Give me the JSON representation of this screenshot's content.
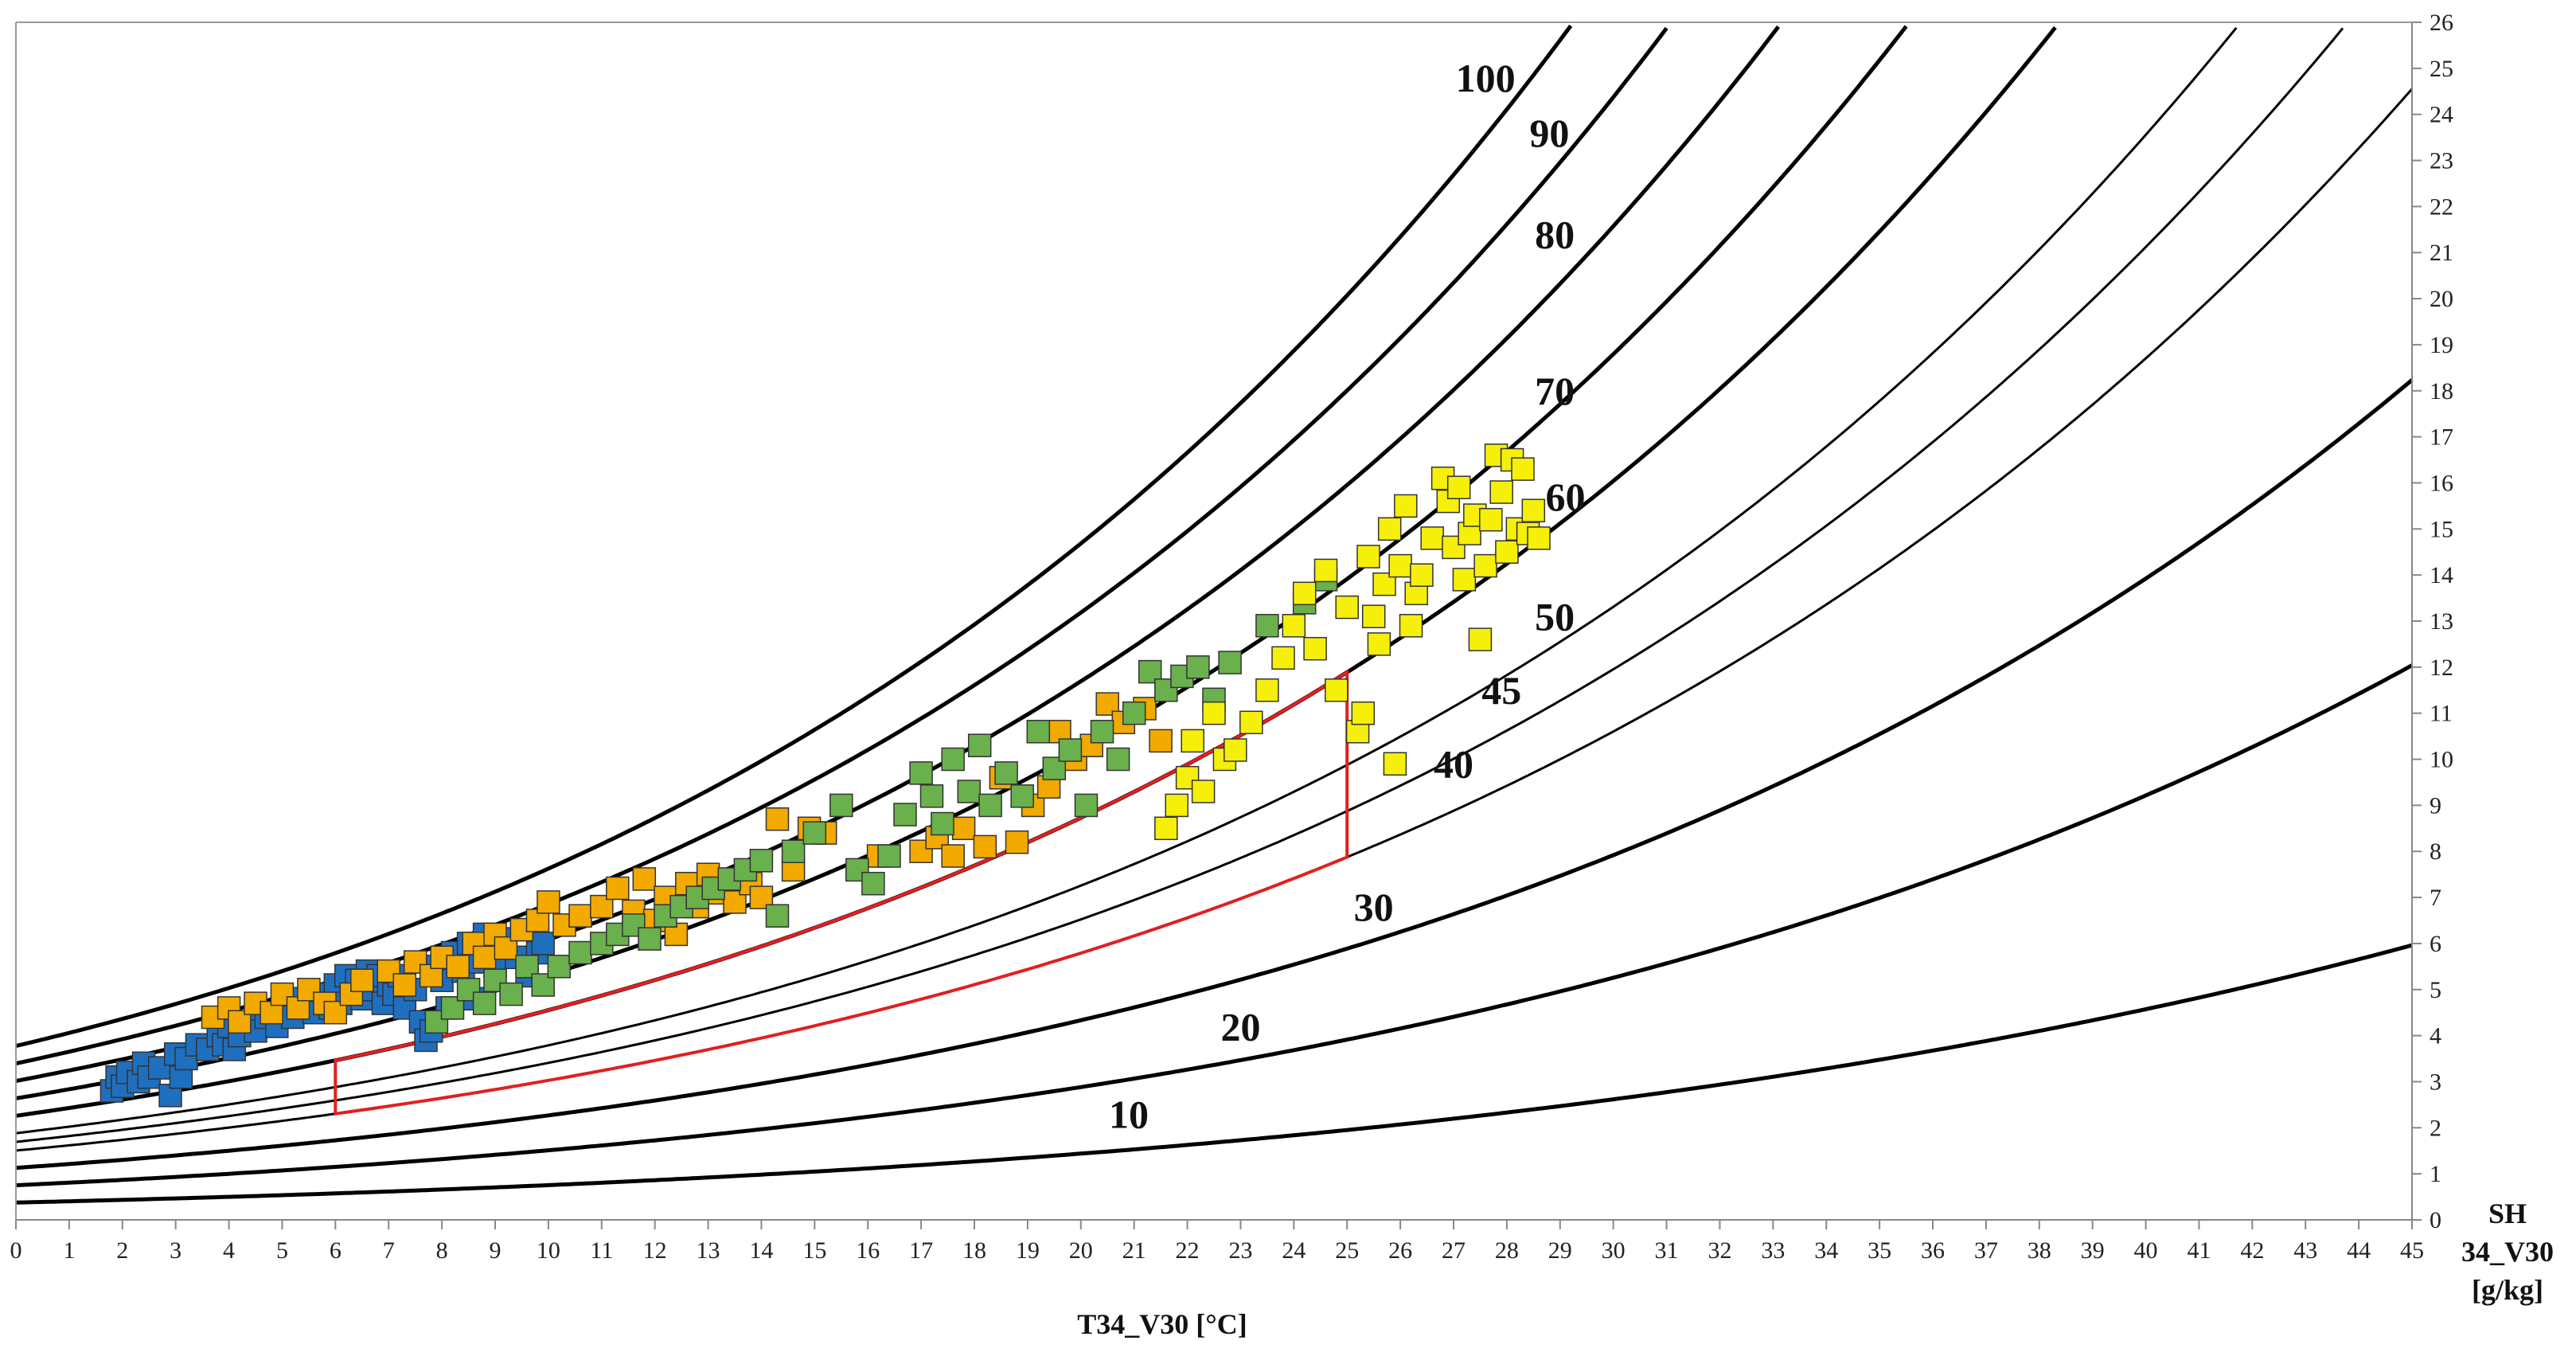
{
  "chart_data": {
    "type": "scatter",
    "title": "",
    "xlabel": "T34_V30 [°C]",
    "ylabel": [
      "SH",
      "34_V30",
      "[g/kg]"
    ],
    "xlim": [
      0,
      45
    ],
    "ylim": [
      0,
      26
    ],
    "x_ticks": [
      "0",
      "1",
      "2",
      "3",
      "4",
      "5",
      "6",
      "7",
      "8",
      "9",
      "10",
      "11",
      "12",
      "13",
      "14",
      "15",
      "16",
      "17",
      "18",
      "19",
      "20",
      "21",
      "22",
      "23",
      "24",
      "25",
      "26",
      "27",
      "28",
      "29",
      "30",
      "31",
      "32",
      "33",
      "34",
      "35",
      "36",
      "37",
      "38",
      "39",
      "40",
      "41",
      "42",
      "43",
      "44",
      "45"
    ],
    "y_ticks": [
      "0",
      "1",
      "2",
      "3",
      "4",
      "5",
      "6",
      "7",
      "8",
      "9",
      "10",
      "11",
      "12",
      "13",
      "14",
      "15",
      "16",
      "17",
      "18",
      "19",
      "20",
      "21",
      "22",
      "23",
      "24",
      "25",
      "26"
    ],
    "grid": false,
    "rh_curves": [
      {
        "rh": 10,
        "label": "10",
        "label_at": [
          20.9,
          2.0
        ]
      },
      {
        "rh": 20,
        "label": "20",
        "label_at": [
          23.0,
          3.9
        ]
      },
      {
        "rh": 30,
        "label": "30",
        "label_at": [
          25.5,
          6.5
        ]
      },
      {
        "rh": 40,
        "label": "40",
        "label_at": [
          27.0,
          9.6
        ]
      },
      {
        "rh": 45,
        "label": "45",
        "label_at": [
          27.9,
          11.2
        ]
      },
      {
        "rh": 50,
        "label": "50",
        "label_at": [
          28.9,
          12.8
        ]
      },
      {
        "rh": 60,
        "label": "60",
        "label_at": [
          29.1,
          15.4
        ]
      },
      {
        "rh": 70,
        "label": "70",
        "label_at": [
          28.9,
          17.7
        ]
      },
      {
        "rh": 80,
        "label": "80",
        "label_at": [
          28.9,
          21.1
        ]
      },
      {
        "rh": 90,
        "label": "90",
        "label_at": [
          28.8,
          23.3
        ]
      },
      {
        "rh": 100,
        "label": "100",
        "label_at": [
          27.6,
          24.5
        ]
      }
    ],
    "comfort_zone": {
      "color": "#e02020",
      "lower_rh": 40,
      "upper_rh": 60,
      "t_min": 6,
      "t_max": 25
    },
    "series": [
      {
        "name": "blue",
        "color": "#1f6fbf",
        "points": [
          [
            1.8,
            2.8
          ],
          [
            1.9,
            3.1
          ],
          [
            2.0,
            2.9
          ],
          [
            2.1,
            3.2
          ],
          [
            2.3,
            3.0
          ],
          [
            2.4,
            3.4
          ],
          [
            2.5,
            3.1
          ],
          [
            2.7,
            3.3
          ],
          [
            2.9,
            2.7
          ],
          [
            3.0,
            3.6
          ],
          [
            3.1,
            3.1
          ],
          [
            3.2,
            3.5
          ],
          [
            3.4,
            3.8
          ],
          [
            3.6,
            3.7
          ],
          [
            3.8,
            4.0
          ],
          [
            3.9,
            3.8
          ],
          [
            4.0,
            4.2
          ],
          [
            4.1,
            3.7
          ],
          [
            4.2,
            4.0
          ],
          [
            4.4,
            4.3
          ],
          [
            4.5,
            4.1
          ],
          [
            4.7,
            4.4
          ],
          [
            4.9,
            4.2
          ],
          [
            5.0,
            4.6
          ],
          [
            5.2,
            4.4
          ],
          [
            5.4,
            4.8
          ],
          [
            5.6,
            4.5
          ],
          [
            5.8,
            4.9
          ],
          [
            5.9,
            4.6
          ],
          [
            6.0,
            5.1
          ],
          [
            6.1,
            4.7
          ],
          [
            6.2,
            5.3
          ],
          [
            6.3,
            4.9
          ],
          [
            6.4,
            5.2
          ],
          [
            6.5,
            4.8
          ],
          [
            6.6,
            5.4
          ],
          [
            6.7,
            5.0
          ],
          [
            6.8,
            5.3
          ],
          [
            6.9,
            4.7
          ],
          [
            7.0,
            5.1
          ],
          [
            7.1,
            4.9
          ],
          [
            7.2,
            5.3
          ],
          [
            7.3,
            4.6
          ],
          [
            7.5,
            5.0
          ],
          [
            7.6,
            4.3
          ],
          [
            7.7,
            3.9
          ],
          [
            7.8,
            4.1
          ],
          [
            7.9,
            5.5
          ],
          [
            8.0,
            5.2
          ],
          [
            8.1,
            4.6
          ],
          [
            8.2,
            5.8
          ],
          [
            8.4,
            5.4
          ],
          [
            8.5,
            6.0
          ],
          [
            8.6,
            4.8
          ],
          [
            8.7,
            5.6
          ],
          [
            8.8,
            6.2
          ],
          [
            8.9,
            5.9
          ],
          [
            9.0,
            5.5
          ],
          [
            9.2,
            6.1
          ],
          [
            9.4,
            5.7
          ],
          [
            9.5,
            6.3
          ],
          [
            9.6,
            5.3
          ],
          [
            9.8,
            5.8
          ],
          [
            9.9,
            6.0
          ]
        ]
      },
      {
        "name": "orange",
        "color": "#f2a900",
        "points": [
          [
            3.7,
            4.4
          ],
          [
            4.0,
            4.6
          ],
          [
            4.2,
            4.3
          ],
          [
            4.5,
            4.7
          ],
          [
            4.8,
            4.5
          ],
          [
            5.0,
            4.9
          ],
          [
            5.3,
            4.6
          ],
          [
            5.5,
            5.0
          ],
          [
            5.8,
            4.7
          ],
          [
            6.0,
            4.5
          ],
          [
            6.3,
            4.9
          ],
          [
            6.5,
            5.2
          ],
          [
            7.0,
            5.4
          ],
          [
            7.3,
            5.1
          ],
          [
            7.5,
            5.6
          ],
          [
            7.8,
            5.3
          ],
          [
            8.0,
            5.7
          ],
          [
            8.3,
            5.5
          ],
          [
            8.6,
            6.0
          ],
          [
            8.8,
            5.7
          ],
          [
            9.0,
            6.2
          ],
          [
            9.2,
            5.9
          ],
          [
            9.5,
            6.3
          ],
          [
            9.8,
            6.5
          ],
          [
            10.0,
            6.9
          ],
          [
            10.3,
            6.4
          ],
          [
            10.6,
            6.6
          ],
          [
            11.0,
            6.8
          ],
          [
            11.3,
            7.2
          ],
          [
            11.6,
            6.7
          ],
          [
            11.8,
            7.4
          ],
          [
            12.0,
            6.5
          ],
          [
            12.2,
            7.0
          ],
          [
            12.4,
            6.2
          ],
          [
            12.6,
            7.3
          ],
          [
            12.8,
            6.8
          ],
          [
            13.0,
            7.5
          ],
          [
            13.2,
            7.1
          ],
          [
            13.5,
            6.9
          ],
          [
            13.8,
            7.3
          ],
          [
            14.0,
            7.0
          ],
          [
            14.3,
            8.7
          ],
          [
            14.6,
            7.6
          ],
          [
            14.9,
            8.5
          ],
          [
            15.2,
            8.4
          ],
          [
            16.2,
            7.9
          ],
          [
            17.0,
            8.0
          ],
          [
            17.3,
            8.3
          ],
          [
            17.6,
            7.9
          ],
          [
            17.8,
            8.5
          ],
          [
            18.2,
            8.1
          ],
          [
            18.5,
            9.6
          ],
          [
            18.8,
            8.2
          ],
          [
            19.1,
            9.0
          ],
          [
            19.4,
            9.4
          ],
          [
            19.6,
            10.6
          ],
          [
            19.9,
            10.0
          ],
          [
            20.2,
            10.3
          ],
          [
            20.5,
            11.2
          ],
          [
            20.8,
            10.8
          ],
          [
            21.2,
            11.1
          ],
          [
            21.5,
            10.4
          ]
        ]
      },
      {
        "name": "green",
        "color": "#6ab04c",
        "points": [
          [
            7.9,
            4.3
          ],
          [
            8.2,
            4.6
          ],
          [
            8.5,
            5.0
          ],
          [
            8.8,
            4.7
          ],
          [
            9.0,
            5.2
          ],
          [
            9.3,
            4.9
          ],
          [
            9.6,
            5.5
          ],
          [
            9.9,
            5.1
          ],
          [
            10.2,
            5.5
          ],
          [
            10.6,
            5.8
          ],
          [
            11.0,
            6.0
          ],
          [
            11.3,
            6.2
          ],
          [
            11.6,
            6.4
          ],
          [
            11.9,
            6.1
          ],
          [
            12.2,
            6.6
          ],
          [
            12.5,
            6.8
          ],
          [
            12.8,
            7.0
          ],
          [
            13.1,
            7.2
          ],
          [
            13.4,
            7.4
          ],
          [
            13.7,
            7.6
          ],
          [
            14.0,
            7.8
          ],
          [
            14.3,
            6.6
          ],
          [
            14.6,
            8.0
          ],
          [
            15.0,
            8.4
          ],
          [
            15.5,
            9.0
          ],
          [
            15.8,
            7.6
          ],
          [
            16.1,
            7.3
          ],
          [
            16.4,
            7.9
          ],
          [
            16.7,
            8.8
          ],
          [
            17.0,
            9.7
          ],
          [
            17.2,
            9.2
          ],
          [
            17.4,
            8.6
          ],
          [
            17.6,
            10.0
          ],
          [
            17.9,
            9.3
          ],
          [
            18.1,
            10.3
          ],
          [
            18.3,
            9.0
          ],
          [
            18.6,
            9.7
          ],
          [
            18.9,
            9.2
          ],
          [
            19.2,
            10.6
          ],
          [
            19.5,
            9.8
          ],
          [
            19.8,
            10.2
          ],
          [
            20.1,
            9.0
          ],
          [
            20.4,
            10.6
          ],
          [
            20.7,
            10.0
          ],
          [
            21.0,
            11.0
          ],
          [
            21.3,
            11.9
          ],
          [
            21.6,
            11.5
          ],
          [
            21.9,
            11.8
          ],
          [
            22.2,
            12.0
          ],
          [
            22.5,
            11.3
          ],
          [
            22.8,
            12.1
          ],
          [
            23.5,
            12.9
          ],
          [
            24.2,
            13.4
          ],
          [
            24.6,
            13.9
          ]
        ]
      },
      {
        "name": "yellow",
        "color": "#f5ef0a",
        "points": [
          [
            21.6,
            8.5
          ],
          [
            21.8,
            9.0
          ],
          [
            22.0,
            9.6
          ],
          [
            22.1,
            10.4
          ],
          [
            22.3,
            9.3
          ],
          [
            22.5,
            11.0
          ],
          [
            22.7,
            10.0
          ],
          [
            22.9,
            10.2
          ],
          [
            23.2,
            10.8
          ],
          [
            23.5,
            11.5
          ],
          [
            23.8,
            12.2
          ],
          [
            24.0,
            12.9
          ],
          [
            24.2,
            13.6
          ],
          [
            24.4,
            12.4
          ],
          [
            24.6,
            14.1
          ],
          [
            24.8,
            11.5
          ],
          [
            25.0,
            13.3
          ],
          [
            25.2,
            10.6
          ],
          [
            25.3,
            11.0
          ],
          [
            25.4,
            14.4
          ],
          [
            25.5,
            13.1
          ],
          [
            25.6,
            12.5
          ],
          [
            25.7,
            13.8
          ],
          [
            25.8,
            15.0
          ],
          [
            25.9,
            9.9
          ],
          [
            26.0,
            14.2
          ],
          [
            26.1,
            15.5
          ],
          [
            26.2,
            12.9
          ],
          [
            26.3,
            13.6
          ],
          [
            26.4,
            14.0
          ],
          [
            26.6,
            14.8
          ],
          [
            26.8,
            16.1
          ],
          [
            26.9,
            15.6
          ],
          [
            27.0,
            14.6
          ],
          [
            27.1,
            15.9
          ],
          [
            27.2,
            13.9
          ],
          [
            27.3,
            14.9
          ],
          [
            27.4,
            15.3
          ],
          [
            27.5,
            12.6
          ],
          [
            27.6,
            14.2
          ],
          [
            27.7,
            15.2
          ],
          [
            27.8,
            16.6
          ],
          [
            27.9,
            15.8
          ],
          [
            28.0,
            14.5
          ],
          [
            28.1,
            16.5
          ],
          [
            28.2,
            15.0
          ],
          [
            28.3,
            16.3
          ],
          [
            28.4,
            14.9
          ],
          [
            28.5,
            15.4
          ],
          [
            28.6,
            14.8
          ]
        ]
      }
    ]
  }
}
